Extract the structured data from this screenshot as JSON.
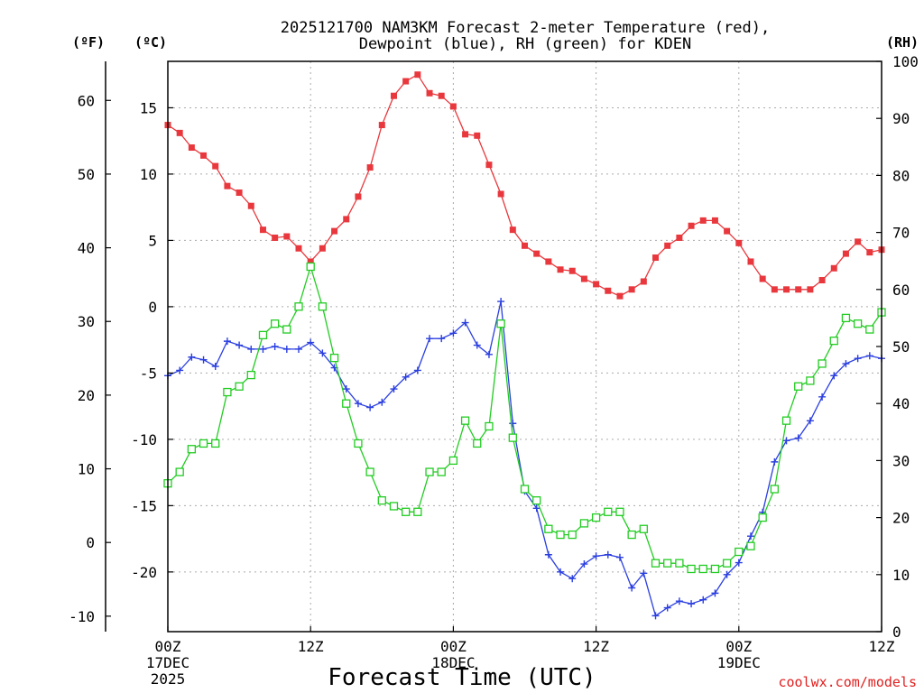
{
  "chart_data": {
    "type": "line",
    "title_line1": "2025121700 NAM3KM Forecast 2-meter Temperature (red),",
    "title_line2": "Dewpoint (blue), RH (green) for KDEN",
    "unit_f": "(ºF)",
    "unit_c": "(ºC)",
    "unit_rh": "(RH)",
    "xlabel": "Forecast Time (UTC)",
    "credit": "coolwx.com/models",
    "xlim_hours": [
      0,
      60
    ],
    "ylim_c": [
      -24.5,
      18.5
    ],
    "ylim_rh": [
      0,
      100
    ],
    "f_ticks": [
      -10,
      0,
      10,
      20,
      30,
      40,
      50,
      60
    ],
    "c_ticks": [
      -20,
      -15,
      -10,
      -5,
      0,
      5,
      10,
      15
    ],
    "rh_ticks": [
      0,
      10,
      20,
      30,
      40,
      50,
      60,
      70,
      80,
      90,
      100
    ],
    "x_ticks": [
      {
        "hour": 0,
        "label": "00Z",
        "date": "17DEC",
        "year": "2025"
      },
      {
        "hour": 12,
        "label": "12Z",
        "date": "",
        "year": ""
      },
      {
        "hour": 24,
        "label": "00Z",
        "date": "18DEC",
        "year": ""
      },
      {
        "hour": 36,
        "label": "12Z",
        "date": "",
        "year": ""
      },
      {
        "hour": 48,
        "label": "00Z",
        "date": "19DEC",
        "year": ""
      },
      {
        "hour": 60,
        "label": "12Z",
        "date": "",
        "year": ""
      }
    ],
    "colors": {
      "temperature": "#e8383d",
      "dewpoint": "#2b3fe0",
      "rh": "#22cc22",
      "grid": "#aaaaaa",
      "credit": "#e02020"
    },
    "series": [
      {
        "name": "Temperature (°C)",
        "axis": "celsius",
        "marker": "filled-square",
        "hours": [
          0,
          1,
          2,
          3,
          4,
          5,
          6,
          7,
          8,
          9,
          10,
          11,
          12,
          13,
          14,
          15,
          16,
          17,
          18,
          19,
          20,
          21,
          22,
          23,
          24,
          25,
          26,
          27,
          28,
          29,
          30,
          31,
          32,
          33,
          34,
          35,
          36,
          37,
          38,
          39,
          40,
          41,
          42,
          43,
          44,
          45,
          46,
          47,
          48,
          49,
          50,
          51,
          52,
          53,
          54,
          55,
          56,
          57,
          58,
          59,
          60
        ],
        "values": [
          13.7,
          13.1,
          12.0,
          11.4,
          10.6,
          9.1,
          8.6,
          7.6,
          5.8,
          5.2,
          5.3,
          4.4,
          3.4,
          4.4,
          5.7,
          6.6,
          8.3,
          10.5,
          13.7,
          15.9,
          17.0,
          17.5,
          16.1,
          15.9,
          15.1,
          13.0,
          12.9,
          10.7,
          8.5,
          5.8,
          4.6,
          4.0,
          3.4,
          2.8,
          2.7,
          2.1,
          1.7,
          1.2,
          0.8,
          1.3,
          1.9,
          3.7,
          4.6,
          5.2,
          6.1,
          6.5,
          6.5,
          5.7,
          4.8,
          3.4,
          2.1,
          1.3,
          1.3,
          1.3,
          1.3,
          2.0,
          2.9,
          4.0,
          4.9,
          4.1,
          4.3
        ]
      },
      {
        "name": "Dewpoint (°C)",
        "axis": "celsius",
        "marker": "plus",
        "hours": [
          0,
          1,
          2,
          3,
          4,
          5,
          6,
          7,
          8,
          9,
          10,
          11,
          12,
          13,
          14,
          15,
          16,
          17,
          18,
          19,
          20,
          21,
          22,
          23,
          24,
          25,
          26,
          27,
          28,
          29,
          30,
          31,
          32,
          33,
          34,
          35,
          36,
          37,
          38,
          39,
          40,
          41,
          42,
          43,
          44,
          45,
          46,
          47,
          48,
          49,
          50,
          51,
          52,
          53,
          54,
          55,
          56,
          57,
          58,
          59,
          60
        ],
        "values": [
          -5.2,
          -4.8,
          -3.8,
          -4.0,
          -4.5,
          -2.6,
          -2.9,
          -3.2,
          -3.2,
          -3.0,
          -3.2,
          -3.2,
          -2.7,
          -3.5,
          -4.6,
          -6.2,
          -7.3,
          -7.6,
          -7.2,
          -6.2,
          -5.3,
          -4.8,
          -2.4,
          -2.4,
          -2.0,
          -1.2,
          -2.9,
          -3.6,
          0.4,
          -8.8,
          -13.9,
          -15.2,
          -18.7,
          -20.0,
          -20.5,
          -19.4,
          -18.8,
          -18.7,
          -18.9,
          -21.2,
          -20.1,
          -23.3,
          -22.7,
          -22.2,
          -22.4,
          -22.1,
          -21.6,
          -20.2,
          -19.3,
          -17.3,
          -15.5,
          -11.7,
          -10.1,
          -9.9,
          -8.6,
          -6.8,
          -5.2,
          -4.3,
          -3.9,
          -3.7,
          -3.9
        ]
      },
      {
        "name": "Relative Humidity (%)",
        "axis": "rh",
        "marker": "open-square",
        "hours": [
          0,
          1,
          2,
          3,
          4,
          5,
          6,
          7,
          8,
          9,
          10,
          11,
          12,
          13,
          14,
          15,
          16,
          17,
          18,
          19,
          20,
          21,
          22,
          23,
          24,
          25,
          26,
          27,
          28,
          29,
          30,
          31,
          32,
          33,
          34,
          35,
          36,
          37,
          38,
          39,
          40,
          41,
          42,
          43,
          44,
          45,
          46,
          47,
          48,
          49,
          50,
          51,
          52,
          53,
          54,
          55,
          56,
          57,
          58,
          59,
          60
        ],
        "values": [
          26,
          28,
          32,
          33,
          33,
          42,
          43,
          45,
          52,
          54,
          53,
          57,
          64,
          57,
          48,
          40,
          33,
          28,
          23,
          22,
          21,
          21,
          28,
          28,
          30,
          37,
          33,
          36,
          54,
          34,
          25,
          23,
          18,
          17,
          17,
          19,
          20,
          21,
          21,
          17,
          18,
          12,
          12,
          12,
          11,
          11,
          11,
          12,
          14,
          15,
          20,
          25,
          37,
          43,
          44,
          47,
          51,
          55,
          54,
          53,
          56
        ]
      }
    ]
  }
}
